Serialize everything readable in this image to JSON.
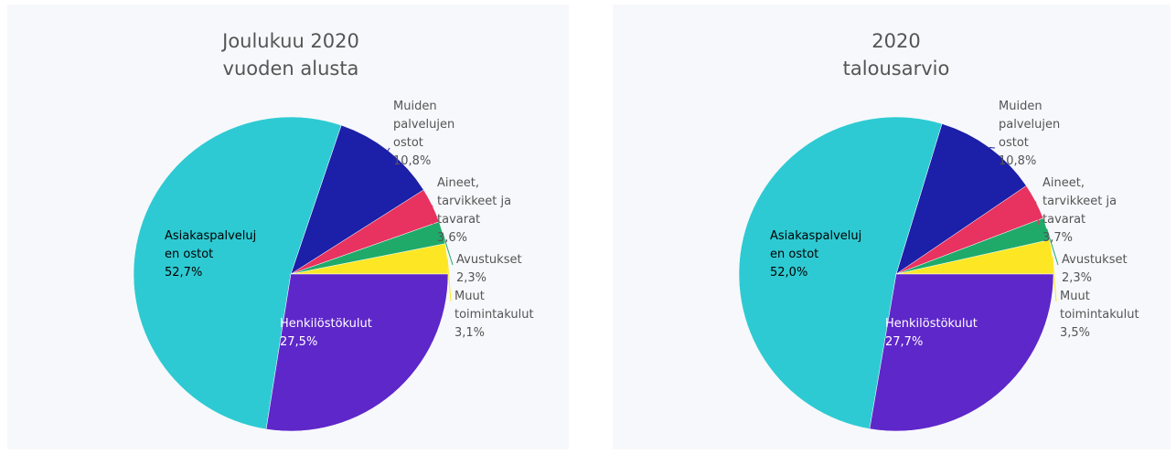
{
  "chart_data": [
    {
      "type": "pie",
      "title": "Joulukuu 2020 vuoden alusta",
      "categories": [
        "Muut toimintakulut",
        "Avustukset",
        "Aineet, tarvikkeet ja tavarat",
        "Muiden palvelujen ostot",
        "Asiakaspalvelujen ostot",
        "Henkilöstökulut"
      ],
      "values": [
        3.1,
        2.3,
        3.6,
        10.8,
        52.7,
        27.5
      ],
      "value_labels": [
        "3,1%",
        "2,3%",
        "3,6%",
        "10,8%",
        "52,7%",
        "27,5%"
      ],
      "colors": [
        "#fde725",
        "#1faa6a",
        "#e8325f",
        "#1c1fa8",
        "#2ecad3",
        "#5e27c9"
      ]
    },
    {
      "type": "pie",
      "title": "2020 talousarvio",
      "categories": [
        "Muut toimintakulut",
        "Avustukset",
        "Aineet, tarvikkeet ja tavarat",
        "Muiden palvelujen ostot",
        "Asiakaspalvelujen ostot",
        "Henkilöstökulut"
      ],
      "values": [
        3.5,
        2.3,
        3.7,
        10.8,
        52.0,
        27.7
      ],
      "value_labels": [
        "3,5%",
        "2,3%",
        "3,7%",
        "10,8%",
        "52,0%",
        "27,7%"
      ],
      "colors": [
        "#fde725",
        "#1faa6a",
        "#e8325f",
        "#1c1fa8",
        "#2ecad3",
        "#5e27c9"
      ]
    }
  ]
}
